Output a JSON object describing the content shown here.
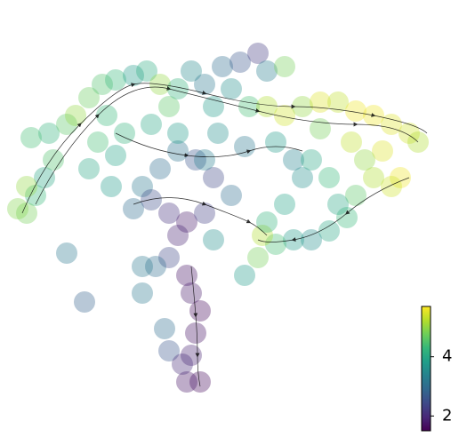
{
  "chart_data": {
    "type": "scatter",
    "colormap": "viridis",
    "x": [
      20,
      30,
      40,
      50,
      45,
      65,
      75,
      90,
      105,
      120,
      140,
      155,
      170,
      180,
      190,
      205,
      220,
      240,
      260,
      280,
      290,
      310,
      250,
      230,
      270,
      290,
      310,
      330,
      350,
      370,
      390,
      410,
      430,
      450,
      460,
      420,
      440,
      430,
      410,
      400,
      390,
      380,
      360,
      340,
      320,
      300,
      285,
      280,
      290,
      310,
      330,
      320,
      340,
      360,
      370,
      250,
      230,
      210,
      190,
      170,
      150,
      140,
      160,
      180,
      200,
      220,
      230,
      190,
      180,
      165,
      150,
      200,
      205,
      215,
      210,
      205,
      215,
      200,
      180,
      175,
      195,
      150,
      65,
      85,
      115,
      25,
      20,
      10,
      100,
      120,
      130,
      90,
      265,
      220,
      190,
      160,
      110,
      235,
      265,
      300,
      350,
      385
    ],
    "y": [
      215,
      235,
      255,
      275,
      305,
      315,
      325,
      345,
      360,
      365,
      370,
      375,
      360,
      335,
      355,
      375,
      360,
      380,
      385,
      395,
      375,
      380,
      355,
      335,
      335,
      335,
      325,
      335,
      340,
      340,
      330,
      325,
      315,
      305,
      295,
      285,
      255,
      245,
      255,
      275,
      235,
      210,
      195,
      185,
      185,
      180,
      190,
      165,
      205,
      225,
      255,
      275,
      275,
      255,
      225,
      235,
      255,
      275,
      285,
      265,
      245,
      220,
      230,
      215,
      205,
      215,
      185,
      190,
      165,
      155,
      155,
      145,
      125,
      105,
      80,
      55,
      25,
      25,
      60,
      85,
      45,
      125,
      170,
      115,
      245,
      300,
      245,
      220,
      295,
      280,
      305,
      265,
      145,
      275,
      305,
      315,
      325,
      305,
      290,
      295,
      310,
      295
    ],
    "values": [
      4.8,
      4.3,
      4.0,
      4.5,
      4.2,
      4.6,
      5.0,
      4.7,
      4.5,
      4.3,
      3.8,
      4.1,
      5.0,
      4.6,
      4.2,
      3.5,
      3.2,
      3.0,
      2.6,
      2.2,
      3.3,
      4.8,
      3.6,
      3.8,
      4.4,
      5.2,
      5.4,
      5.0,
      5.5,
      5.3,
      5.6,
      5.6,
      5.5,
      5.4,
      5.2,
      5.5,
      5.6,
      5.4,
      5.2,
      5.0,
      4.6,
      4.3,
      4.0,
      3.6,
      3.8,
      4.4,
      5.2,
      4.8,
      4.2,
      3.9,
      3.6,
      3.4,
      4.0,
      4.3,
      4.0,
      3.0,
      2.4,
      2.6,
      3.1,
      3.0,
      3.2,
      3.0,
      2.5,
      2.1,
      1.8,
      2.3,
      3.6,
      1.9,
      2.4,
      3.0,
      3.2,
      1.7,
      1.8,
      1.6,
      1.7,
      1.9,
      1.6,
      1.7,
      2.6,
      3.0,
      2.0,
      3.2,
      3.2,
      2.8,
      3.8,
      4.4,
      5.0,
      4.9,
      4.4,
      3.9,
      4.2,
      4.0,
      3.8,
      3.3,
      3.8,
      4.0,
      4.3,
      3.6,
      3.2,
      3.8,
      4.8,
      5.3
    ],
    "xlim": [
      0,
      480
    ],
    "ylim": [
      0,
      405
    ],
    "colorbar": {
      "clim": [
        1.5,
        5.7
      ],
      "ticks": [
        2,
        4
      ]
    }
  }
}
